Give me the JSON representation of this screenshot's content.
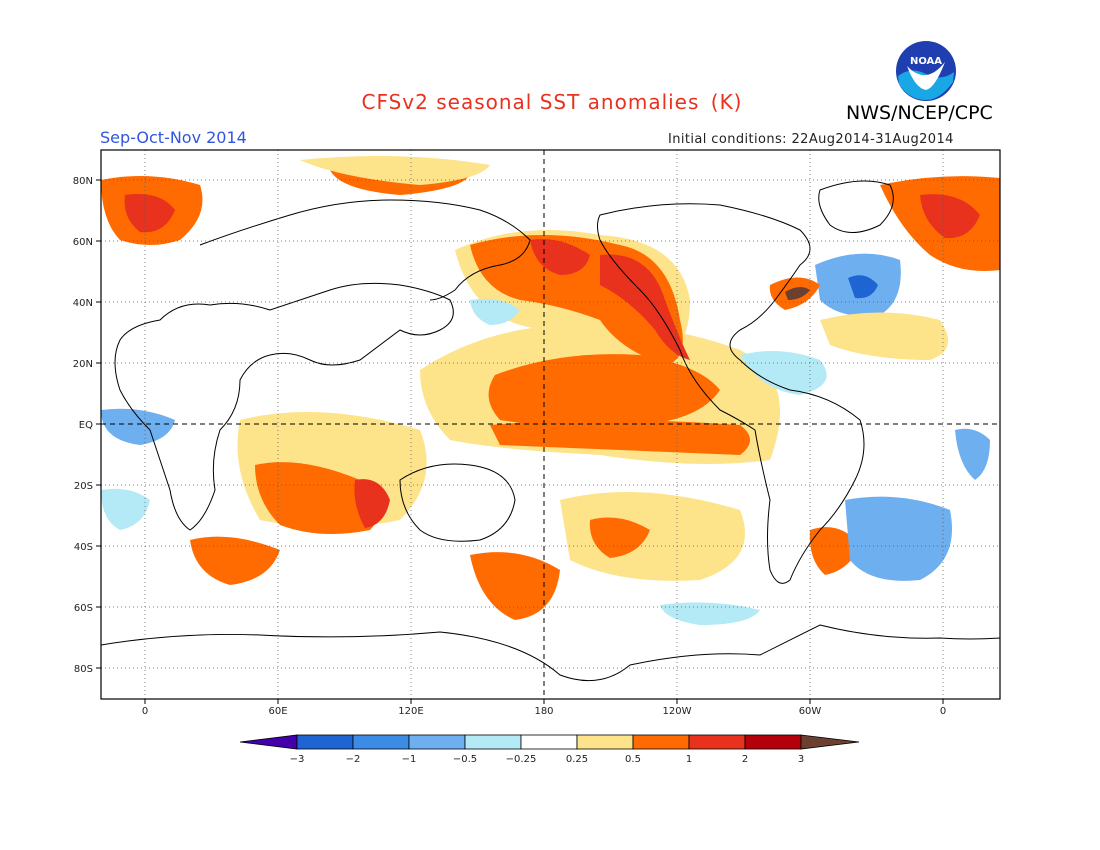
{
  "header": {
    "title_main": "CFSv2 seasonal SST anomalies",
    "title_unit": "(K)",
    "season": "Sep-Oct-Nov 2014",
    "initial_conditions": "Initial conditions: 22Aug2014-31Aug2014",
    "agency": "NWS/NCEP/CPC",
    "logo_text": "NOAA",
    "title_color": "#e8321e",
    "season_color": "#3355dd"
  },
  "map": {
    "lat_labels": [
      "80N",
      "60N",
      "40N",
      "20N",
      "EQ",
      "20S",
      "40S",
      "60S",
      "80S"
    ],
    "lon_labels": [
      "0",
      "60E",
      "120E",
      "180",
      "120W",
      "60W",
      "0"
    ]
  },
  "colorbar": {
    "labels": [
      "-3",
      "-2",
      "-1",
      "-0.5",
      "-0.25",
      "0.25",
      "0.5",
      "1",
      "2",
      "3"
    ],
    "colors": [
      "#4400aa",
      "#1e64d2",
      "#3c8ce6",
      "#6eaff0",
      "#b4eaf5",
      "#ffffff",
      "#fde38a",
      "#ff6b00",
      "#e8321e",
      "#b4000a",
      "#6b4030"
    ]
  }
}
